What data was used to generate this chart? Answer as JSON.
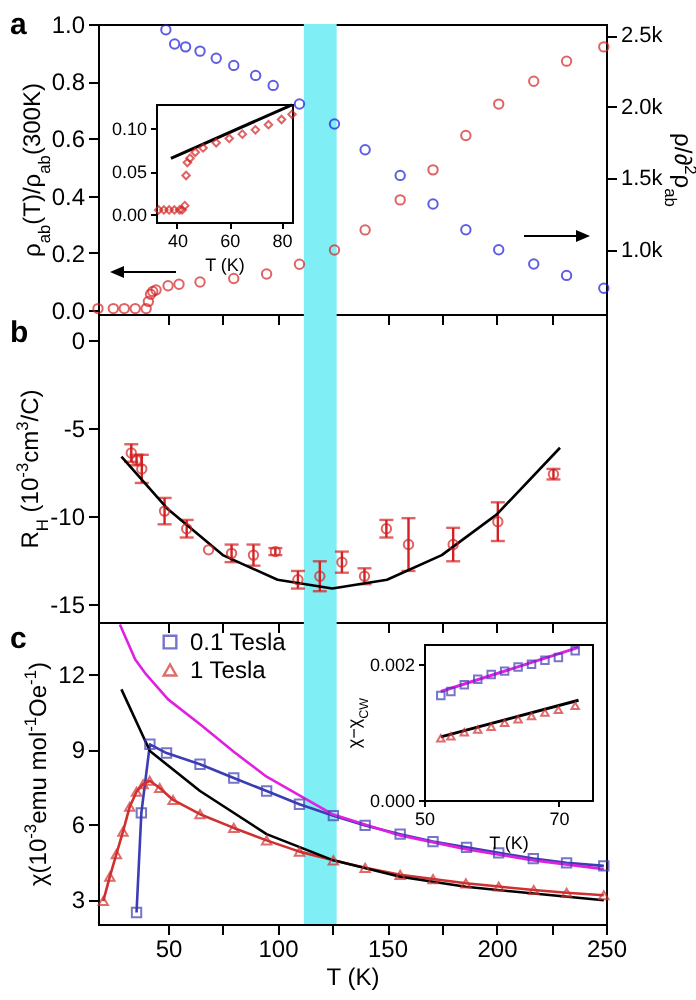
{
  "chart_data": [
    {
      "type": "scatter",
      "title": "a",
      "ylabel": "ρ$_{ab}$(T)/ρ$_{ab}$(300K)",
      "y2label": "ρ/∂$^{2}$ρ$_{ab}$",
      "xlim": [
        18,
        250
      ],
      "xticks": [
        50,
        {
          "value": 75,
          "label": null
        },
        100,
        {
          "value": 125,
          "label": null
        },
        150,
        {
          "value": 175,
          "label": null
        },
        200,
        {
          "value": 225,
          "label": null
        },
        250
      ],
      "ylim": [
        -0.014,
        1.0
      ],
      "yticks": [
        {
          "value": 0,
          "label": "0.0"
        },
        {
          "value": 0.2,
          "label": "0.2"
        },
        {
          "value": 0.4,
          "label": "0.4"
        },
        {
          "value": 0.6,
          "label": "0.6"
        },
        {
          "value": 0.8,
          "label": "0.8"
        },
        {
          "value": 1,
          "label": "1.0"
        }
      ],
      "y2lim": [
        550,
        2580
      ],
      "y2ticks": [
        {
          "value": 1000,
          "label": "1.0k"
        },
        {
          "value": 1500,
          "label": "1.5k"
        },
        {
          "value": 2000,
          "label": "2.0k"
        },
        {
          "value": 2500,
          "label": "2.5k"
        }
      ],
      "tick_labels": "y",
      "marker": "circle",
      "bands": [
        {
          "axis": "x",
          "from": 112,
          "to": 127,
          "color": "#80eef5"
        }
      ],
      "series": [
        {
          "color": "#d42020",
          "x": [
            18,
            25,
            30,
            35,
            40,
            41,
            42,
            43,
            44.5,
            50,
            55,
            64.6,
            80,
            95,
            110,
            126,
            140,
            156,
            171,
            186,
            201,
            217,
            232,
            249
          ],
          "values": [
            0.005,
            0.005,
            0.005,
            0.005,
            0.005,
            0.03,
            0.055,
            0.065,
            0.07,
            0.085,
            0.09,
            0.098,
            0.11,
            0.126,
            0.16,
            0.21,
            0.28,
            0.385,
            0.49,
            0.61,
            0.72,
            0.8,
            0.87,
            0.92
          ]
        },
        {
          "color": "#1a1adc",
          "axis": "y2",
          "x": [
            49,
            53,
            58,
            64.6,
            72,
            80,
            90,
            98,
            110,
            126,
            140,
            156,
            171,
            186,
            201,
            217,
            232,
            249
          ],
          "values": [
            2540,
            2440,
            2420,
            2390,
            2340,
            2290,
            2220,
            2150,
            2020,
            1880,
            1700,
            1520,
            1320,
            1140,
            1000,
            900,
            820,
            730
          ]
        }
      ]
    },
    {
      "type": "scatter",
      "xlabel": "T (K)",
      "xlim": [
        32,
        84
      ],
      "xticks": [
        40,
        60,
        80
      ],
      "ylim": [
        -0.009,
        0.128
      ],
      "yticks": [
        {
          "value": 0,
          "label": "0.00"
        },
        {
          "value": 0.05,
          "label": "0.05"
        },
        {
          "value": 0.1,
          "label": "0.10"
        }
      ],
      "series": [
        {
          "color": "#d42020",
          "marker": "diamond",
          "x": [
            33,
            35,
            37,
            39,
            41,
            42,
            43,
            43.5,
            44,
            45,
            47,
            50,
            55,
            60,
            65,
            70,
            75,
            80,
            84
          ],
          "values": [
            0.005,
            0.005,
            0.005,
            0.005,
            0.005,
            0.005,
            0.01,
            0.045,
            0.06,
            0.065,
            0.072,
            0.077,
            0.083,
            0.088,
            0.093,
            0.098,
            0.104,
            0.11,
            0.116
          ]
        },
        {
          "type": "line",
          "color": "#000000",
          "x": [
            37.7,
            84
          ],
          "values": [
            0.065,
            0.127
          ]
        }
      ]
    },
    {
      "type": "scatter",
      "title": "b",
      "ylabel": "R$_{H}$ (10$^{-3}$cm$^{3}$/C)",
      "xlim": [
        18,
        250
      ],
      "xticks": [
        50,
        {
          "value": 75,
          "label": null
        },
        100,
        {
          "value": 125,
          "label": null
        },
        150,
        {
          "value": 175,
          "label": null
        },
        200,
        {
          "value": 225,
          "label": null
        },
        250
      ],
      "ylim": [
        -16,
        1.5
      ],
      "yticks": [
        -15,
        -10,
        -5,
        0
      ],
      "tick_labels": "y",
      "bands": [
        {
          "axis": "x",
          "from": 112,
          "to": 127,
          "color": "#80eef5"
        }
      ],
      "series": [
        {
          "color": "#d42020",
          "marker": "circle",
          "x": [
            33.2,
            35.6,
            38,
            48.4,
            58.5,
            68.5,
            79,
            89,
            99,
            109.3,
            119.3,
            129.4,
            139.7,
            149.7,
            159.8,
            180.2,
            200.6,
            226
          ],
          "values": [
            -6.4,
            -6.8,
            -7.3,
            -9.7,
            -10.7,
            -11.9,
            -12.1,
            -12.2,
            -12,
            -13.6,
            -13.4,
            -12.6,
            -13.4,
            -10.7,
            -11.6,
            -11.6,
            -10.3,
            -7.6
          ],
          "errors": [
            0.5,
            0.3,
            0.8,
            0.75,
            0.5,
            null,
            0.5,
            0.6,
            0.2,
            0.5,
            0.85,
            0.6,
            0.45,
            0.5,
            1.5,
            0.95,
            1.1,
            0.3
          ]
        },
        {
          "type": "line",
          "color": "#000000",
          "x": [
            28.7,
            50,
            75,
            100,
            125,
            150,
            175,
            200,
            229
          ],
          "values": [
            -6.6,
            -9.6,
            -12.2,
            -13.6,
            -14.1,
            -13.6,
            -12.2,
            -9.9,
            -6.1
          ]
        }
      ]
    },
    {
      "type": "line",
      "title": "c",
      "xlabel": "T (K)",
      "ylabel": "χ(10$^{-3}$emu mol$^{-1}$Oe$^{-1}$)",
      "xlim": [
        18,
        250
      ],
      "xticks": [
        50,
        {
          "value": 75,
          "label": null
        },
        100,
        {
          "value": 125,
          "label": null
        },
        150,
        {
          "value": 175,
          "label": null
        },
        200,
        {
          "value": 225,
          "label": null
        },
        250
      ],
      "ylim": [
        2,
        14.1
      ],
      "yticks": [
        3,
        6,
        9,
        12
      ],
      "legend": "top left",
      "bands": [
        {
          "axis": "x",
          "from": 112,
          "to": 127,
          "color": "#80eef5"
        }
      ],
      "series": [
        {
          "name": "0.1 Tesla",
          "color": "#3c3cb4",
          "marker": "square",
          "x": [
            35.6,
            37.8,
            41.7,
            49.3,
            64.6,
            80,
            95,
            110,
            125.5,
            140,
            156,
            171,
            186.3,
            201,
            216.8,
            232,
            249
          ],
          "values": [
            2.46,
            6.45,
            9.2,
            8.85,
            8.4,
            7.85,
            7.33,
            6.8,
            6.34,
            5.95,
            5.6,
            5.3,
            5.07,
            4.85,
            4.62,
            4.45,
            4.33
          ]
        },
        {
          "name": "1 Tesla",
          "color": "#d03030",
          "marker": "triangle",
          "x": [
            20.4,
            23.4,
            26.4,
            29.4,
            32.5,
            35.6,
            38.6,
            41.6,
            46.2,
            52.3,
            64.6,
            80,
            95,
            110,
            125.5,
            140,
            156,
            171,
            186,
            201,
            217,
            232,
            249
          ],
          "values": [
            2.92,
            3.9,
            4.8,
            5.7,
            6.7,
            7.3,
            7.6,
            7.74,
            7.45,
            6.97,
            6.4,
            5.85,
            5.35,
            4.9,
            4.55,
            4.25,
            3.97,
            3.8,
            3.63,
            3.5,
            3.36,
            3.25,
            3.15
          ]
        },
        {
          "color": "#e020e0",
          "x": [
            28,
            35,
            40,
            50,
            64.6,
            80,
            95,
            125,
            156,
            186,
            217,
            249
          ],
          "values": [
            14,
            12.6,
            12,
            11,
            10,
            8.9,
            7.9,
            6.4,
            5.55,
            5,
            4.55,
            4.2
          ]
        },
        {
          "color": "#000000",
          "x": [
            28.7,
            41.7,
            64.6,
            95,
            125.5,
            156,
            186,
            217,
            249
          ],
          "values": [
            11.4,
            8.93,
            7.33,
            5.6,
            4.55,
            3.89,
            3.49,
            3.22,
            2.95
          ]
        }
      ]
    },
    {
      "type": "line",
      "xlabel": "T (K)",
      "ylabel": "χ−χ$_{CW}$",
      "xlim": [
        50,
        75
      ],
      "xticks": [
        50,
        70
      ],
      "ylim": [
        0,
        0.0023
      ],
      "yticks": [
        {
          "value": 0,
          "label": "0.000"
        },
        {
          "value": 0.002,
          "label": "0.002"
        }
      ],
      "series": [
        {
          "type": "scatter",
          "color": "#3c3cb4",
          "marker": "square",
          "x": [
            52.5,
            54,
            56,
            58,
            60,
            62,
            64,
            66,
            68,
            70,
            72.5
          ],
          "values": [
            0.00154,
            0.0016,
            0.0017,
            0.00178,
            0.00185,
            0.0019,
            0.00196,
            0.002,
            0.00206,
            0.0021,
            0.0022
          ]
        },
        {
          "type": "scatter",
          "color": "#d03030",
          "marker": "triangle",
          "x": [
            52.5,
            54,
            56,
            58,
            60,
            62,
            64,
            66,
            68,
            70,
            72.5
          ],
          "values": [
            0.00091,
            0.00094,
            0.001,
            0.00104,
            0.00108,
            0.00114,
            0.00119,
            0.00124,
            0.00129,
            0.00133,
            0.00139
          ]
        },
        {
          "color": "#e020e0",
          "x": [
            52.5,
            73
          ],
          "values": [
            0.0016,
            0.00225
          ]
        },
        {
          "color": "#000000",
          "x": [
            52.5,
            73
          ],
          "values": [
            0.00093,
            0.00147
          ]
        }
      ]
    }
  ]
}
